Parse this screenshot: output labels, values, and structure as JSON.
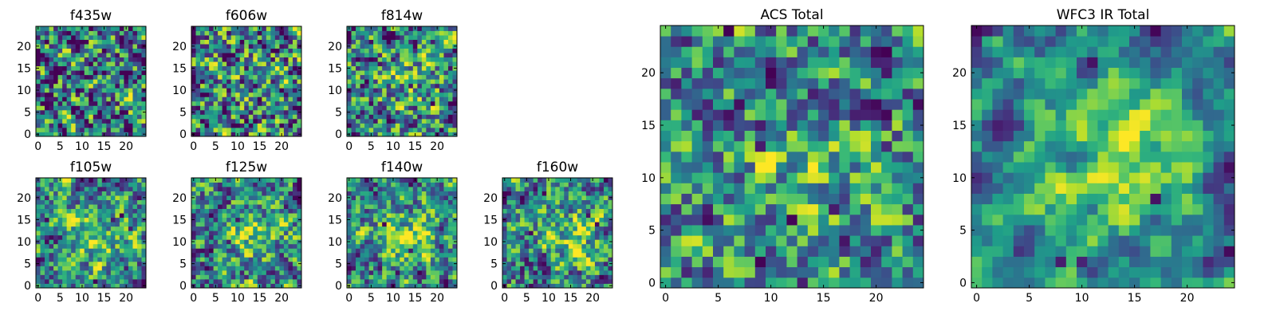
{
  "chart_data": [
    {
      "type": "heatmap",
      "title": "f435w",
      "colormap": "viridis",
      "grid_size": 25,
      "xlim": [
        0,
        24
      ],
      "ylim": [
        0,
        24
      ],
      "x_ticks": [
        "0",
        "5",
        "10",
        "15",
        "20"
      ],
      "y_ticks": [
        "0",
        "5",
        "10",
        "15",
        "20"
      ],
      "center_brightness": 0.0,
      "noise": 0.42,
      "seed": 11,
      "dark_pixels": 14
    },
    {
      "type": "heatmap",
      "title": "f606w",
      "colormap": "viridis",
      "grid_size": 25,
      "xlim": [
        0,
        24
      ],
      "ylim": [
        0,
        24
      ],
      "x_ticks": [
        "0",
        "5",
        "10",
        "15",
        "20"
      ],
      "y_ticks": [
        "0",
        "5",
        "10",
        "15",
        "20"
      ],
      "center_brightness": 0.05,
      "noise": 0.42,
      "seed": 23,
      "dark_pixels": 12
    },
    {
      "type": "heatmap",
      "title": "f814w",
      "colormap": "viridis",
      "grid_size": 25,
      "xlim": [
        0,
        24
      ],
      "ylim": [
        0,
        24
      ],
      "x_ticks": [
        "0",
        "5",
        "10",
        "15",
        "20"
      ],
      "y_ticks": [
        "0",
        "5",
        "10",
        "15",
        "20"
      ],
      "center_brightness": 0.15,
      "noise": 0.38,
      "seed": 37,
      "dark_pixels": 12
    },
    {
      "type": "heatmap",
      "title": "f105w",
      "colormap": "viridis",
      "grid_size": 25,
      "xlim": [
        0,
        24
      ],
      "ylim": [
        0,
        24
      ],
      "x_ticks": [
        "0",
        "5",
        "10",
        "15",
        "20"
      ],
      "y_ticks": [
        "0",
        "5",
        "10",
        "15",
        "20"
      ],
      "center_brightness": 0.3,
      "noise": 0.3,
      "seed": 41,
      "dark_pixels": 10
    },
    {
      "type": "heatmap",
      "title": "f125w",
      "colormap": "viridis",
      "grid_size": 25,
      "xlim": [
        0,
        24
      ],
      "ylim": [
        0,
        24
      ],
      "x_ticks": [
        "0",
        "5",
        "10",
        "15",
        "20"
      ],
      "y_ticks": [
        "0",
        "5",
        "10",
        "15",
        "20"
      ],
      "center_brightness": 0.28,
      "noise": 0.32,
      "seed": 53,
      "dark_pixels": 10
    },
    {
      "type": "heatmap",
      "title": "f140w",
      "colormap": "viridis",
      "grid_size": 25,
      "xlim": [
        0,
        24
      ],
      "ylim": [
        0,
        24
      ],
      "x_ticks": [
        "0",
        "5",
        "10",
        "15",
        "20"
      ],
      "y_ticks": [
        "0",
        "5",
        "10",
        "15",
        "20"
      ],
      "center_brightness": 0.32,
      "noise": 0.3,
      "seed": 67,
      "dark_pixels": 6
    },
    {
      "type": "heatmap",
      "title": "f160w",
      "colormap": "viridis",
      "grid_size": 25,
      "xlim": [
        0,
        24
      ],
      "ylim": [
        0,
        24
      ],
      "x_ticks": [
        "0",
        "5",
        "10",
        "15",
        "20"
      ],
      "y_ticks": [
        "0",
        "5",
        "10",
        "15",
        "20"
      ],
      "center_brightness": 0.3,
      "noise": 0.32,
      "seed": 79,
      "dark_pixels": 12
    },
    {
      "type": "heatmap",
      "title": "ACS Total",
      "colormap": "viridis",
      "grid_size": 25,
      "xlim": [
        0,
        24
      ],
      "ylim": [
        0,
        24
      ],
      "x_ticks": [
        "0",
        "5",
        "10",
        "15",
        "20"
      ],
      "y_ticks": [
        "0",
        "5",
        "10",
        "15",
        "20"
      ],
      "center_brightness": 0.2,
      "noise": 0.32,
      "seed": 97,
      "dark_pixels": 10
    },
    {
      "type": "heatmap",
      "title": "WFC3 IR Total",
      "colormap": "viridis",
      "grid_size": 25,
      "xlim": [
        0,
        24
      ],
      "ylim": [
        0,
        24
      ],
      "x_ticks": [
        "0",
        "5",
        "10",
        "15",
        "20"
      ],
      "y_ticks": [
        "0",
        "5",
        "10",
        "15",
        "20"
      ],
      "center_brightness": 0.45,
      "noise": 0.14,
      "seed": 113,
      "dark_pixels": 8,
      "dark_top_left_corner": true
    }
  ]
}
